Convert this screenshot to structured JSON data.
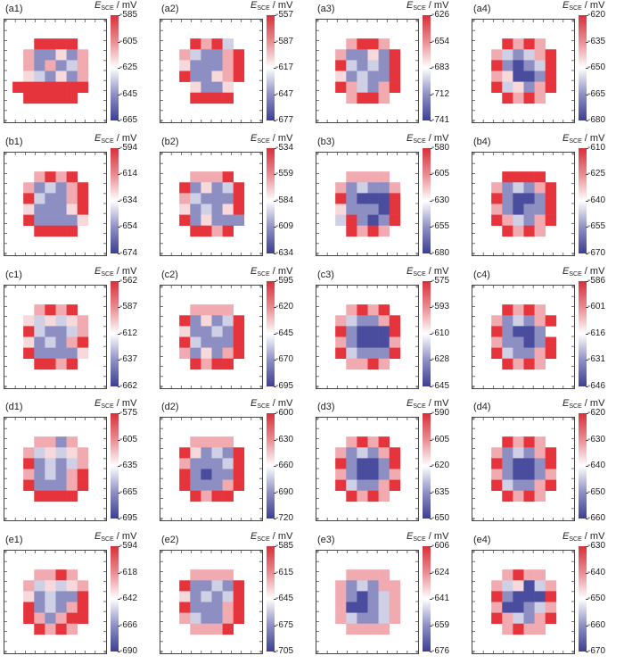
{
  "colors": {
    "high": "#d8303a",
    "mid": "#ffffff",
    "low": "#3c3f91"
  },
  "cbar_unit": {
    "E": "E",
    "sub": "SCE",
    "unit": " / mV"
  },
  "chart_data": [
    {
      "type": "heatmap",
      "label": "(a1)",
      "ticks": [
        "-585",
        "-605",
        "-625",
        "-645",
        "-665"
      ],
      "grid": [
        "........",
        "..1111..",
        ".,-->-,.",
        ".,-,-+,.",
        ".>+->-,.",
        "1111111.",
        ".11111..",
        "........"
      ]
    },
    {
      "type": "heatmap",
      "label": "(a2)",
      "ticks": [
        "-557",
        "-587",
        "-617",
        "-647",
        "-677"
      ],
      "grid": [
        "........",
        "..1,1+..",
        ".,+--,1.",
        ".>---,1.",
        ".1-->,1.",
        "..>-->..",
        "..1111..",
        "........"
      ]
    },
    {
      "type": "heatmap",
      "label": "(a3)",
      "ticks": [
        "-626",
        "-654",
        "-683",
        "-712",
        "-741"
      ],
      "grid": [
        "........",
        "..,11,..",
        ".,-->-1.",
        ".1+-+-1.",
        ".>-+--1.",
        ".1,+-,1.",
        "..,11,..",
        "........"
      ]
    },
    {
      "type": "heatmap",
      "label": "(a4)",
      "ticks": [
        "-620",
        "-635",
        "-650",
        "-665",
        "-680"
      ],
      "grid": [
        "........",
        "..1,1,..",
        ".,+-+,1.",
        ".1-=-+1.",
        ".,>==-1.",
        ".1+>-,1.",
        "..1,1,..",
        "........"
      ]
    },
    {
      "type": "heatmap",
      "label": "(b1)",
      "ticks": [
        "-594",
        "-614",
        "-634",
        "-654",
        "-674"
      ],
      "grid": [
        "........",
        "..,1,1..",
        ".,-+-,1.",
        ".1+--,1.",
        ".>--->1.",
        ".1---->.",
        "..1111..",
        "........"
      ]
    },
    {
      "type": "heatmap",
      "label": "(b2)",
      "ticks": [
        "-534",
        "-559",
        "-584",
        "-609",
        "-634"
      ],
      "grid": [
        "........",
        "..,,,1..",
        ".1->-+1.",
        ".,+---1.",
        ".>-+->1.",
        ".1->---.",
        "..11,1..",
        "........"
      ]
    },
    {
      "type": "heatmap",
      "label": "(b3)",
      "ticks": [
        "-580",
        "-605",
        "-630",
        "-655",
        "-680"
      ],
      "grid": [
        "........",
        "..,,,,..",
        ".,-+--,.",
        ".1-===1.",
        ".>---=1.",
        ".+1-=-1.",
        "..1,1,..",
        "........"
      ]
    },
    {
      "type": "heatmap",
      "label": "(b4)",
      "ticks": [
        "-610",
        "-625",
        "-640",
        "-655",
        "-670"
      ],
      "grid": [
        "........",
        "..1111..",
        ".,-+-,1.",
        ".1-==-1.",
        ".,-=--1.",
        ".1,+-,1.",
        "..1,1,..",
        "........"
      ]
    },
    {
      "type": "heatmap",
      "label": "(c1)",
      "ticks": [
        "-562",
        "-587",
        "-612",
        "-637",
        "-662"
      ],
      "grid": [
        "........",
        "..,1,1..",
        ".>+>+>,.",
        ".1+--+,.",
        ".>-+-,1.",
        ".1---->.",
        "..11,1..",
        "........"
      ]
    },
    {
      "type": "heatmap",
      "label": "(c2)",
      "ticks": [
        "-595",
        "-620",
        "-645",
        "-670",
        "-695"
      ],
      "grid": [
        "........",
        "..,,,,..",
        ".1->-+1.",
        ".>--+-1.",
        ".1+---1.",
        ".,->-,1.",
        "..1,11..",
        "........"
      ]
    },
    {
      "type": "heatmap",
      "label": "(c3)",
      "ticks": [
        "-575",
        "-593",
        "-610",
        "-628",
        "-645"
      ],
      "grid": [
        "........",
        "..,1,1..",
        ".,+--,1.",
        ".1-===1.",
        ".,-===,.",
        ".1+---1.",
        "..,,1,..",
        "........"
      ]
    },
    {
      "type": "heatmap",
      "label": "(c4)",
      "ticks": [
        "-586",
        "-601",
        "-616",
        "-631",
        "-646"
      ],
      "grid": [
        "........",
        "..1,1,..",
        ".,-+-,1.",
        ".1-==-..",
        ".,--=-1.",
        ".1+--,1.",
        "..1,1,..",
        "........"
      ]
    },
    {
      "type": "heatmap",
      "label": "(d1)",
      "ticks": [
        "-575",
        "-605",
        "-635",
        "-665",
        "-695"
      ],
      "grid": [
        "........",
        "..,,-,..",
        ".,+>+>,.",
        ".1-+-+,.",
        ".,-+-,1.",
        ".1---,1.",
        "..1111..",
        "........"
      ]
    },
    {
      "type": "heatmap",
      "label": "(d2)",
      "ticks": [
        "-600",
        "-630",
        "-660",
        "-690",
        "-720"
      ],
      "grid": [
        "........",
        "..,,,,..",
        ".1>-+-1.",
        ".,---+1.",
        ".1-=--1.",
        ".1---,1.",
        "..1,11..",
        "........"
      ]
    },
    {
      "type": "heatmap",
      "label": "(d3)",
      "ticks": [
        "-590",
        "-605",
        "-620",
        "-635",
        "-650"
      ],
      "grid": [
        "........",
        "..,1,1..",
        ".,-+-,1.",
        ".1-==-1.",
        ".,-==-,.",
        ".1+--,1.",
        "..1,1,..",
        "........"
      ]
    },
    {
      "type": "heatmap",
      "label": "(d4)",
      "ticks": [
        "-620",
        "-630",
        "-640",
        "-650",
        "-660"
      ],
      "grid": [
        "........",
        "..1,1,..",
        ".,-+-,1.",
        ".1-==-1.",
        ".,-==-,.",
        ".1+--,1.",
        "..1,1,..",
        "........"
      ]
    },
    {
      "type": "heatmap",
      "label": "(e1)",
      "ticks": [
        "-594",
        "-618",
        "-642",
        "-666",
        "-690"
      ],
      "grid": [
        "........",
        "..,,1,..",
        ".,+>+>,.",
        ".>-+--1.",
        ".1-+-,1.",
        ".1,-,11.",
        "..1,1,..",
        "........"
      ]
    },
    {
      "type": "heatmap",
      "label": "(e2)",
      "ticks": [
        "-585",
        "-615",
        "-645",
        "-675",
        "-705"
      ],
      "grid": [
        "........",
        "..,,,,..",
        ".1--+-1.",
        ".>-+-+1.",
        ".1---,1.",
        ".,+--,1.",
        "..,,,1..",
        "........"
      ]
    },
    {
      "type": "heatmap",
      "label": "(e3)",
      "ticks": [
        "-606",
        "-624",
        "-641",
        "-659",
        "-676"
      ],
      "grid": [
        "........",
        "..,,,,..",
        ".,-+-,,.",
        ".,-=-+,.",
        ".,==-+,.",
        ".,+--+,.",
        "..,,,,..",
        "........"
      ]
    },
    {
      "type": "heatmap",
      "label": "(e4)",
      "ticks": [
        "-630",
        "-640",
        "-650",
        "-660",
        "-670"
      ],
      "grid": [
        "........",
        "..,1,,..",
        ".,+>=+,.",
        ".1-===1.",
        ".,==-+,.",
        ".1,+-,1.",
        "..,1,,..",
        "........"
      ]
    }
  ]
}
